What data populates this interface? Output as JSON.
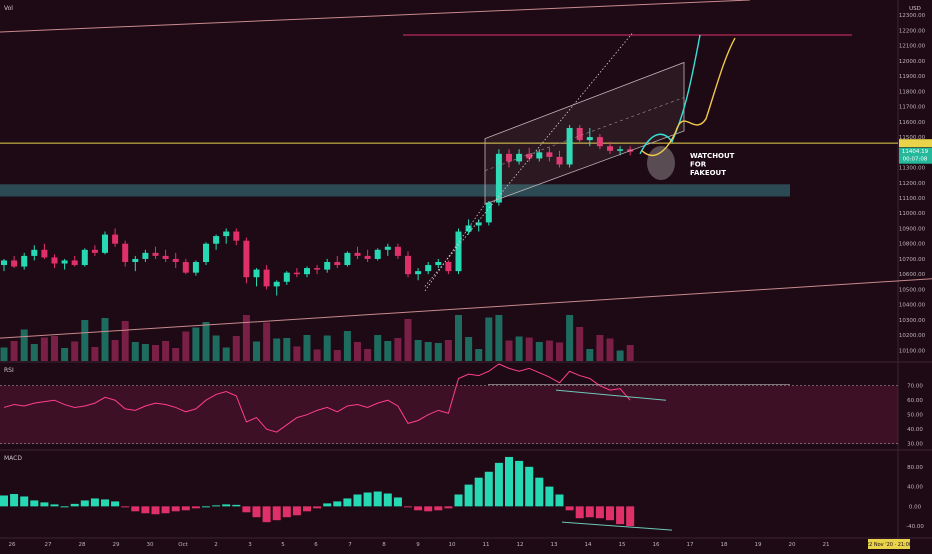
{
  "chart_data": {
    "type": "candlestick",
    "symbol_currency": "USD",
    "panes": {
      "price": {
        "label": "Vol",
        "y_ticks": [
          10100,
          10200,
          10300,
          10400,
          10500,
          10600,
          10700,
          10800,
          10900,
          11000,
          11100,
          11200,
          11300,
          11400,
          11500,
          11600,
          11700,
          11800,
          11900,
          12000,
          12100,
          12200,
          12300
        ],
        "ylim": [
          10030,
          12400
        ],
        "current_price_label": "11404.19",
        "countdown_label": "00:07:08",
        "horizontal_level": 11460,
        "candles": [
          [
            10660,
            10700,
            10620,
            10690
          ],
          [
            10690,
            10720,
            10640,
            10650
          ],
          [
            10650,
            10740,
            10630,
            10720
          ],
          [
            10720,
            10790,
            10690,
            10760
          ],
          [
            10760,
            10800,
            10700,
            10710
          ],
          [
            10710,
            10730,
            10640,
            10670
          ],
          [
            10670,
            10700,
            10630,
            10690
          ],
          [
            10690,
            10720,
            10650,
            10660
          ],
          [
            10660,
            10770,
            10650,
            10760
          ],
          [
            10760,
            10790,
            10720,
            10740
          ],
          [
            10740,
            10880,
            10730,
            10860
          ],
          [
            10860,
            10900,
            10780,
            10800
          ],
          [
            10800,
            10820,
            10650,
            10680
          ],
          [
            10680,
            10720,
            10620,
            10700
          ],
          [
            10700,
            10760,
            10680,
            10740
          ],
          [
            10740,
            10780,
            10700,
            10720
          ],
          [
            10720,
            10760,
            10680,
            10700
          ],
          [
            10700,
            10740,
            10640,
            10680
          ],
          [
            10680,
            10700,
            10600,
            10610
          ],
          [
            10610,
            10690,
            10590,
            10680
          ],
          [
            10680,
            10810,
            10660,
            10800
          ],
          [
            10800,
            10860,
            10760,
            10850
          ],
          [
            10850,
            10900,
            10800,
            10880
          ],
          [
            10880,
            10900,
            10790,
            10820
          ],
          [
            10820,
            10840,
            10540,
            10580
          ],
          [
            10580,
            10640,
            10520,
            10630
          ],
          [
            10630,
            10660,
            10500,
            10520
          ],
          [
            10520,
            10560,
            10460,
            10550
          ],
          [
            10550,
            10620,
            10530,
            10610
          ],
          [
            10610,
            10640,
            10580,
            10600
          ],
          [
            10600,
            10650,
            10580,
            10640
          ],
          [
            10640,
            10660,
            10600,
            10630
          ],
          [
            10630,
            10700,
            10610,
            10680
          ],
          [
            10680,
            10720,
            10640,
            10660
          ],
          [
            10660,
            10750,
            10650,
            10740
          ],
          [
            10740,
            10780,
            10700,
            10720
          ],
          [
            10720,
            10760,
            10680,
            10700
          ],
          [
            10700,
            10770,
            10690,
            10760
          ],
          [
            10760,
            10800,
            10720,
            10780
          ],
          [
            10780,
            10800,
            10700,
            10720
          ],
          [
            10720,
            10750,
            10580,
            10600
          ],
          [
            10600,
            10640,
            10560,
            10620
          ],
          [
            10620,
            10680,
            10600,
            10660
          ],
          [
            10660,
            10700,
            10640,
            10680
          ],
          [
            10680,
            10690,
            10600,
            10620
          ],
          [
            10620,
            10900,
            10600,
            10880
          ],
          [
            10880,
            10960,
            10860,
            10920
          ],
          [
            10920,
            10960,
            10880,
            10940
          ],
          [
            10940,
            11080,
            10920,
            11070
          ],
          [
            11070,
            11420,
            11050,
            11390
          ],
          [
            11390,
            11420,
            11300,
            11340
          ],
          [
            11340,
            11420,
            11320,
            11390
          ],
          [
            11390,
            11430,
            11340,
            11360
          ],
          [
            11360,
            11420,
            11340,
            11400
          ],
          [
            11400,
            11430,
            11340,
            11370
          ],
          [
            11370,
            11410,
            11300,
            11320
          ],
          [
            11320,
            11580,
            11300,
            11560
          ],
          [
            11560,
            11580,
            11460,
            11480
          ],
          [
            11480,
            11560,
            11440,
            11500
          ],
          [
            11500,
            11520,
            11420,
            11440
          ],
          [
            11440,
            11470,
            11390,
            11410
          ],
          [
            11410,
            11440,
            11380,
            11420
          ],
          [
            11420,
            11440,
            11380,
            11404
          ]
        ]
      },
      "rsi": {
        "label": "RSI",
        "y_ticks": [
          30,
          40,
          50,
          60,
          70
        ],
        "ylim": [
          27,
          85
        ],
        "band_upper": 70,
        "band_lower": 30,
        "values": [
          55,
          57,
          56,
          58,
          59,
          60,
          57,
          55,
          56,
          58,
          62,
          60,
          54,
          53,
          56,
          58,
          57,
          55,
          52,
          54,
          60,
          64,
          66,
          63,
          45,
          48,
          40,
          38,
          43,
          48,
          50,
          53,
          55,
          52,
          56,
          57,
          55,
          58,
          60,
          56,
          44,
          46,
          50,
          53,
          51,
          75,
          78,
          77,
          80,
          85,
          82,
          80,
          82,
          79,
          76,
          72,
          80,
          77,
          75,
          70,
          67,
          68,
          60
        ]
      },
      "macd": {
        "label": "MACD",
        "y_ticks": [
          80,
          40,
          0,
          -40
        ],
        "ylim": [
          -60,
          110
        ],
        "histogram": [
          22,
          25,
          20,
          12,
          8,
          4,
          0,
          5,
          12,
          16,
          14,
          10,
          -2,
          -10,
          -14,
          -16,
          -14,
          -10,
          -8,
          -4,
          0,
          2,
          4,
          3,
          -12,
          -22,
          -32,
          -28,
          -22,
          -18,
          -10,
          -4,
          6,
          10,
          16,
          24,
          28,
          30,
          26,
          18,
          -2,
          -8,
          -10,
          -8,
          -4,
          24,
          44,
          58,
          70,
          88,
          100,
          92,
          80,
          58,
          40,
          24,
          -8,
          -24,
          -22,
          -24,
          -28,
          -36,
          -40
        ]
      }
    },
    "x_ticks": [
      "26",
      "27",
      "28",
      "29",
      "30",
      "Oct",
      "2",
      "3",
      "5",
      "6",
      "7",
      "8",
      "9",
      "10",
      "11",
      "12",
      "13",
      "14",
      "15",
      "16",
      "17",
      "18",
      "19",
      "20",
      "21"
    ],
    "x_date_label": "22 Nov '20 · 21:00"
  },
  "annotations": {
    "note": "WATCHOUT\nFOR\nFAKEOUT"
  },
  "colors": {
    "background": "#1e0a14",
    "bull": "#26d9b4",
    "bear": "#e0306a",
    "level": "#e8d34a",
    "rsi_line": "#ff3e8d",
    "support_zone": "#2f5a63",
    "path_cyan": "#38e0d6",
    "path_yellow": "#f2c84a"
  }
}
